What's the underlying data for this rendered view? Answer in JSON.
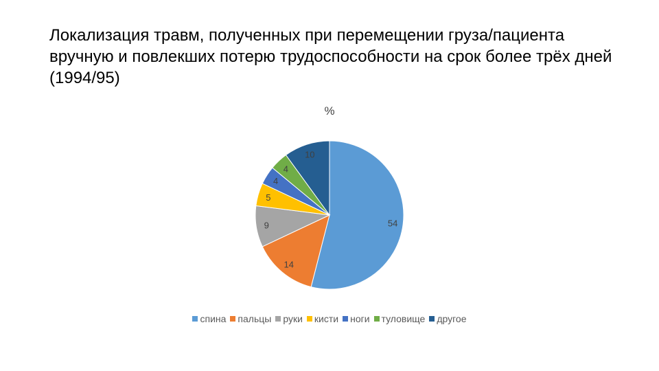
{
  "slide": {
    "title": "Локализация травм, полученных при перемещении груза/пациента вручную и повлекших потерю трудоспособности на срок более трёх дней (1994/95)"
  },
  "chart_data": {
    "type": "pie",
    "title": "%",
    "categories": [
      "спина",
      "пальцы",
      "руки",
      "кисти",
      "ноги",
      "туловище",
      "другое"
    ],
    "values": [
      54,
      14,
      9,
      5,
      4,
      4,
      10
    ],
    "colors": [
      "#5B9BD5",
      "#ED7D31",
      "#A5A5A5",
      "#FFC000",
      "#4472C4",
      "#70AD47",
      "#255E91"
    ],
    "legend": "bottom",
    "data_labels": true
  }
}
